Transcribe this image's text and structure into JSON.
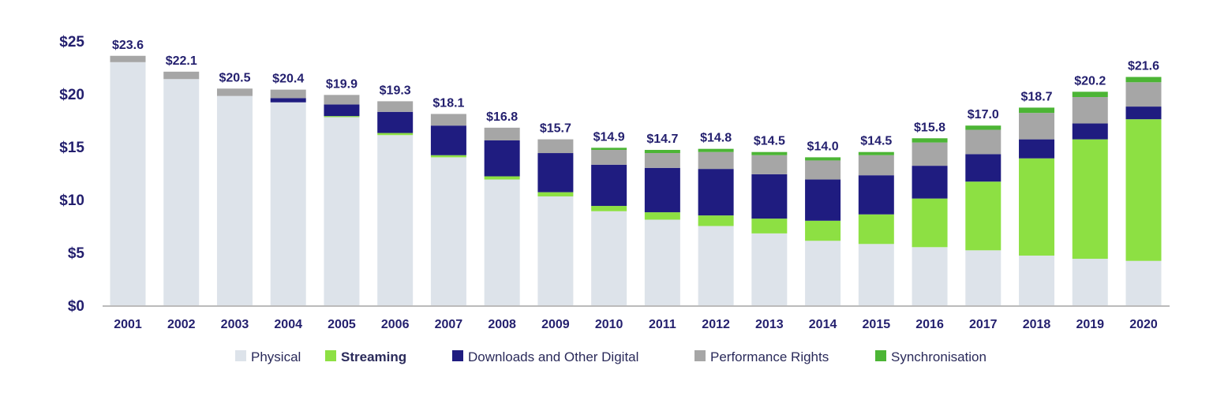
{
  "chart_data": {
    "type": "bar",
    "stacked": true,
    "categories": [
      "2001",
      "2002",
      "2003",
      "2004",
      "2005",
      "2006",
      "2007",
      "2008",
      "2009",
      "2010",
      "2011",
      "2012",
      "2013",
      "2014",
      "2015",
      "2016",
      "2017",
      "2018",
      "2019",
      "2020"
    ],
    "series": [
      {
        "name": "Physical",
        "color": "#dde3ea",
        "values": [
          23.0,
          21.4,
          19.8,
          19.2,
          17.8,
          16.1,
          14.0,
          11.9,
          10.3,
          8.9,
          8.1,
          7.5,
          6.8,
          6.1,
          5.8,
          5.5,
          5.2,
          4.7,
          4.4,
          4.2
        ]
      },
      {
        "name": "Streaming",
        "color": "#8de043",
        "values": [
          0,
          0,
          0,
          0,
          0.1,
          0.2,
          0.2,
          0.3,
          0.4,
          0.5,
          0.7,
          1.0,
          1.4,
          1.9,
          2.8,
          4.6,
          6.5,
          9.2,
          11.3,
          13.4
        ]
      },
      {
        "name": "Downloads and Other Digital",
        "color": "#1f1c80",
        "values": [
          0,
          0,
          0,
          0.4,
          1.1,
          2.0,
          2.8,
          3.4,
          3.7,
          3.9,
          4.2,
          4.4,
          4.2,
          3.9,
          3.7,
          3.1,
          2.6,
          1.8,
          1.5,
          1.2
        ]
      },
      {
        "name": "Performance Rights",
        "color": "#a6a6a6",
        "values": [
          0.6,
          0.7,
          0.7,
          0.8,
          0.9,
          1.0,
          1.1,
          1.2,
          1.3,
          1.4,
          1.4,
          1.6,
          1.8,
          1.8,
          1.9,
          2.2,
          2.3,
          2.5,
          2.5,
          2.3
        ]
      },
      {
        "name": "Synchronisation",
        "color": "#4cb535",
        "values": [
          0,
          0,
          0,
          0,
          0,
          0,
          0,
          0,
          0,
          0.2,
          0.3,
          0.3,
          0.3,
          0.3,
          0.3,
          0.4,
          0.4,
          0.5,
          0.5,
          0.5
        ]
      }
    ],
    "totals": [
      "$23.6",
      "$22.1",
      "$20.5",
      "$20.4",
      "$19.9",
      "$19.3",
      "$18.1",
      "$16.8",
      "$15.7",
      "$14.9",
      "$14.7",
      "$14.8",
      "$14.5",
      "$14.0",
      "$14.5",
      "$15.8",
      "$17.0",
      "$18.7",
      "$20.2",
      "$21.6"
    ],
    "yticks": [
      "$0",
      "$5",
      "$10",
      "$15",
      "$20",
      "$25"
    ],
    "ytick_values": [
      0,
      5,
      10,
      15,
      20,
      25
    ],
    "ylim": [
      0,
      25
    ],
    "grid": false,
    "legend_position": "bottom",
    "xlabel": "",
    "ylabel": "",
    "title": ""
  }
}
